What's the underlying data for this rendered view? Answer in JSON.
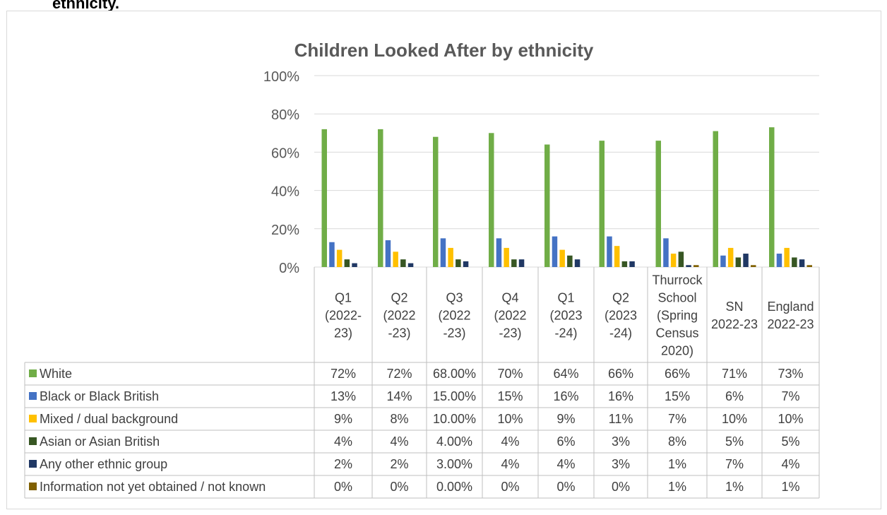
{
  "page": {
    "heading": "ethnicity."
  },
  "chart_data": {
    "type": "bar",
    "title": "Children Looked After by ethnicity",
    "xlabel": "",
    "ylabel": "",
    "ylim": [
      0,
      100
    ],
    "yticks": [
      "0%",
      "20%",
      "40%",
      "60%",
      "80%",
      "100%"
    ],
    "grid": true,
    "legend": "table-left",
    "categories": [
      [
        "Q1",
        "(2022-",
        "23)"
      ],
      [
        "Q2",
        "(2022",
        "-23)"
      ],
      [
        "Q3",
        "(2022",
        "-23)"
      ],
      [
        "Q4",
        "(2022",
        "-23)"
      ],
      [
        "Q1",
        "(2023",
        "-24)"
      ],
      [
        "Q2",
        "(2023",
        "-24)"
      ],
      [
        "Thurrock",
        "School",
        "(Spring",
        "Census",
        "2020)"
      ],
      [
        "SN",
        "2022-23"
      ],
      [
        "England",
        "2022-23"
      ]
    ],
    "series": [
      {
        "name": "White",
        "color": "#70ad47",
        "values": [
          72,
          72,
          68,
          70,
          64,
          66,
          66,
          71,
          73
        ],
        "labels": [
          "72%",
          "72%",
          "68.00%",
          "70%",
          "64%",
          "66%",
          "66%",
          "71%",
          "73%"
        ],
        "plotted": [
          true,
          true,
          true,
          true,
          true,
          true,
          false,
          true,
          true
        ]
      },
      {
        "name": "Black or Black British",
        "color": "#4472c4",
        "values": [
          13,
          14,
          15,
          15,
          16,
          16,
          15,
          6,
          7
        ],
        "labels": [
          "13%",
          "14%",
          "15.00%",
          "15%",
          "16%",
          "16%",
          "15%",
          "6%",
          "7%"
        ],
        "plotted": [
          true,
          true,
          true,
          true,
          true,
          true,
          false,
          true,
          true
        ]
      },
      {
        "name": "Mixed / dual background",
        "color": "#ffc000",
        "values": [
          9,
          8,
          10,
          10,
          9,
          11,
          7,
          10,
          10
        ],
        "labels": [
          "9%",
          "8%",
          "10.00%",
          "10%",
          "9%",
          "11%",
          "7%",
          "10%",
          "10%"
        ],
        "plotted": [
          true,
          true,
          true,
          true,
          true,
          true,
          false,
          true,
          true
        ]
      },
      {
        "name": "Asian or Asian British",
        "color": "#375623",
        "values": [
          4,
          4,
          4,
          4,
          6,
          3,
          8,
          5,
          5
        ],
        "labels": [
          "4%",
          "4%",
          "4.00%",
          "4%",
          "6%",
          "3%",
          "8%",
          "5%",
          "5%"
        ],
        "plotted": [
          true,
          true,
          true,
          true,
          true,
          true,
          false,
          true,
          true
        ]
      },
      {
        "name": "Any other ethnic group",
        "color": "#203864",
        "values": [
          2,
          2,
          3,
          4,
          4,
          3,
          1,
          7,
          4
        ],
        "labels": [
          "2%",
          "2%",
          "3.00%",
          "4%",
          "4%",
          "3%",
          "1%",
          "7%",
          "4%"
        ],
        "plotted": [
          true,
          true,
          true,
          true,
          true,
          true,
          false,
          true,
          true
        ]
      },
      {
        "name": "Information not yet obtained /  not known",
        "color": "#806000",
        "values": [
          0,
          0,
          0,
          0,
          0,
          0,
          1,
          1,
          1
        ],
        "labels": [
          "0%",
          "0%",
          "0.00%",
          "0%",
          "0%",
          "0%",
          "1%",
          "1%",
          "1%"
        ],
        "plotted": [
          true,
          true,
          true,
          true,
          true,
          true,
          false,
          true,
          true
        ]
      }
    ]
  }
}
